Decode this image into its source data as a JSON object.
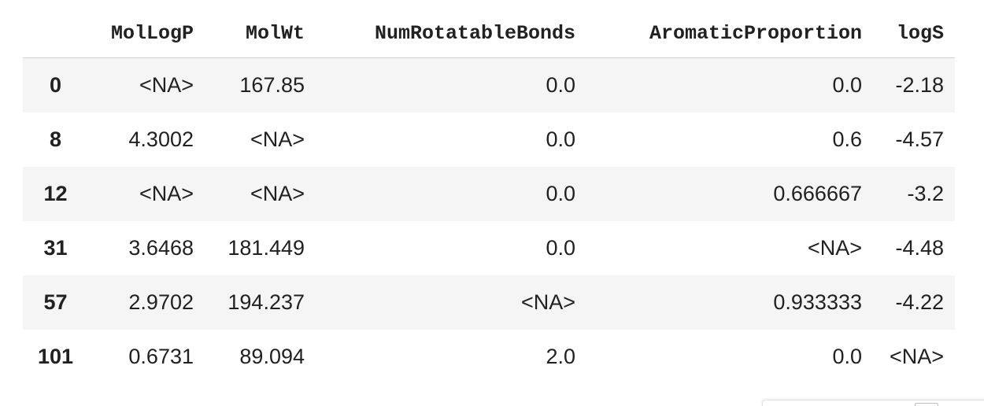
{
  "table": {
    "columns": [
      "",
      "MolLogP",
      "MolWt",
      "NumRotatableBonds",
      "AromaticProportion",
      "logS"
    ],
    "rows": [
      {
        "index": "0",
        "cells": [
          "<NA>",
          "167.85",
          "0.0",
          "0.0",
          "-2.18"
        ]
      },
      {
        "index": "8",
        "cells": [
          "4.3002",
          "<NA>",
          "0.0",
          "0.6",
          "-4.57"
        ]
      },
      {
        "index": "12",
        "cells": [
          "<NA>",
          "<NA>",
          "0.0",
          "0.666667",
          "-3.2"
        ]
      },
      {
        "index": "31",
        "cells": [
          "3.6468",
          "181.449",
          "0.0",
          "<NA>",
          "-4.48"
        ]
      },
      {
        "index": "57",
        "cells": [
          "2.9702",
          "194.237",
          "<NA>",
          "0.933333",
          "-4.22"
        ]
      },
      {
        "index": "101",
        "cells": [
          "0.6731",
          "89.094",
          "2.0",
          "0.0",
          "<NA>"
        ]
      }
    ]
  },
  "colors": {
    "stripe": "#f5f5f5",
    "text": "#212121"
  }
}
